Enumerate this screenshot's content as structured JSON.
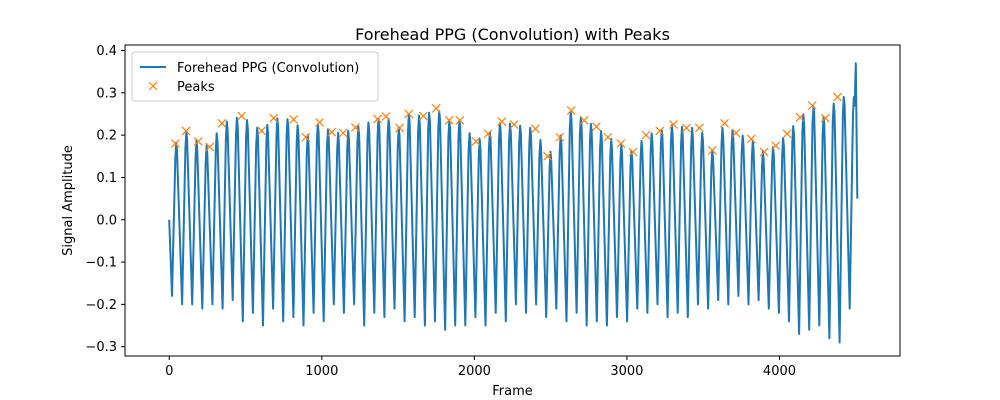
{
  "chart_data": {
    "type": "line",
    "title": "Forehead PPG (Convolution) with Peaks",
    "xlabel": "Frame",
    "ylabel": "Signal Amplitude",
    "xlim": [
      -290,
      4790
    ],
    "ylim": [
      -0.322,
      0.413
    ],
    "xticks": [
      0,
      1000,
      2000,
      3000,
      4000
    ],
    "yticks": [
      -0.3,
      -0.2,
      -0.1,
      0.0,
      0.1,
      0.2,
      0.3,
      0.4
    ],
    "xtick_labels": [
      "0",
      "1000",
      "2000",
      "3000",
      "4000"
    ],
    "ytick_labels": [
      "−0.3",
      "−0.2",
      "−0.1",
      "0.0",
      "0.1",
      "0.2",
      "0.3",
      "0.4"
    ],
    "grid": false,
    "legend": {
      "placement": "upper-left",
      "entries": [
        "Forehead PPG (Convolution)",
        "Peaks"
      ]
    },
    "series": [
      {
        "name": "Forehead PPG (Convolution)",
        "kind": "line",
        "color": "#1f77b4",
        "start_frame": 0,
        "end_frame": 4510,
        "start_value": 0.0,
        "end_value": 0.05,
        "final_spike_value": 0.37,
        "troughs": [
          -0.18,
          -0.2,
          -0.2,
          -0.21,
          -0.2,
          -0.21,
          -0.19,
          -0.24,
          -0.22,
          -0.25,
          -0.21,
          -0.24,
          -0.23,
          -0.25,
          -0.22,
          -0.24,
          -0.2,
          -0.22,
          -0.2,
          -0.25,
          -0.22,
          -0.23,
          -0.21,
          -0.24,
          -0.23,
          -0.25,
          -0.24,
          -0.26,
          -0.25,
          -0.25,
          -0.23,
          -0.25,
          -0.22,
          -0.24,
          -0.2,
          -0.22,
          -0.2,
          -0.23,
          -0.21,
          -0.24,
          -0.22,
          -0.25,
          -0.24,
          -0.25,
          -0.23,
          -0.24,
          -0.21,
          -0.22,
          -0.2,
          -0.23,
          -0.22,
          -0.23,
          -0.2,
          -0.21,
          -0.19,
          -0.2,
          -0.18,
          -0.2,
          -0.19,
          -0.21,
          -0.22,
          -0.24,
          -0.27,
          -0.26,
          -0.25,
          -0.28,
          -0.29,
          -0.21
        ]
      },
      {
        "name": "Peaks",
        "kind": "markers",
        "marker": "x",
        "color": "#ff7f0e",
        "x": [
          40,
          110,
          190,
          265,
          345,
          475,
          605,
          685,
          815,
          895,
          985,
          1065,
          1140,
          1220,
          1365,
          1420,
          1510,
          1570,
          1665,
          1750,
          1835,
          1905,
          2010,
          2090,
          2180,
          2260,
          2400,
          2480,
          2560,
          2635,
          2720,
          2800,
          2875,
          2960,
          3040,
          3125,
          3215,
          3305,
          3390,
          3475,
          3560,
          3640,
          3715,
          3815,
          3900,
          3975,
          4050,
          4135,
          4215,
          4300,
          4380
        ],
        "y": [
          0.18,
          0.21,
          0.185,
          0.172,
          0.228,
          0.245,
          0.21,
          0.24,
          0.237,
          0.195,
          0.23,
          0.207,
          0.205,
          0.218,
          0.238,
          0.244,
          0.217,
          0.25,
          0.245,
          0.263,
          0.235,
          0.235,
          0.185,
          0.203,
          0.232,
          0.225,
          0.215,
          0.15,
          0.195,
          0.258,
          0.235,
          0.22,
          0.195,
          0.18,
          0.16,
          0.2,
          0.21,
          0.225,
          0.217,
          0.217,
          0.164,
          0.228,
          0.205,
          0.191,
          0.16,
          0.175,
          0.203,
          0.242,
          0.27,
          0.24,
          0.29
        ]
      }
    ]
  }
}
